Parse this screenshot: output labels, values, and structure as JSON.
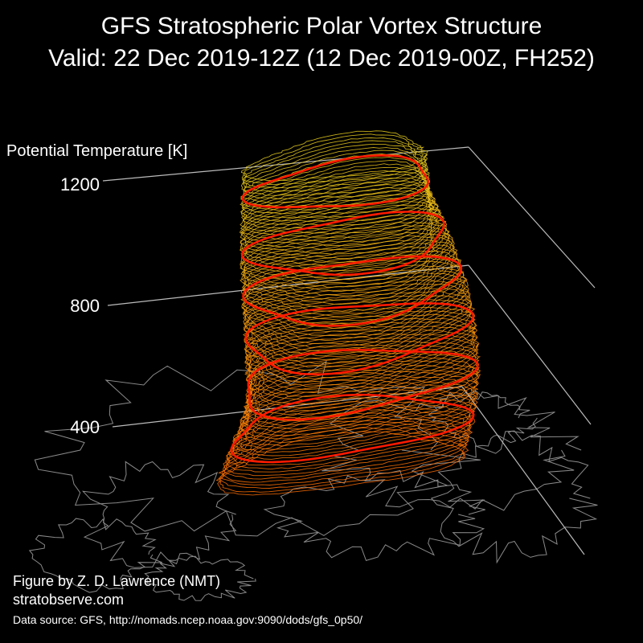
{
  "title_line1": "GFS Stratospheric Polar Vortex Structure",
  "title_line2": "Valid: 22 Dec 2019-12Z  (12 Dec 2019-00Z, FH252)",
  "credit_author": "Figure by Z. D. Lawrence (NMT)",
  "credit_site": "stratobserve.com",
  "data_source": "Data source: GFS, http://nomads.ncep.noaa.gov:9090/dods/gfs_0p50/",
  "colors": {
    "background": "#000000",
    "axis_lines": "#bbbbbb",
    "coastlines": "#8a8a8a",
    "highlight_contours": "#ff1a00",
    "low_level_contours": "#ff6a00",
    "high_level_contours": "#e6d21e"
  },
  "chart_data": {
    "type": "3d-contour-stack",
    "zlabel": "Potential Temperature [K]",
    "z_ticks": [
      400,
      800,
      1200
    ],
    "zlim": [
      250,
      1350
    ],
    "colorscale": "orange (low levels) to yellow (high levels)",
    "highlighted_levels": [
      400,
      550,
      700,
      850,
      1000,
      1200
    ]
  }
}
